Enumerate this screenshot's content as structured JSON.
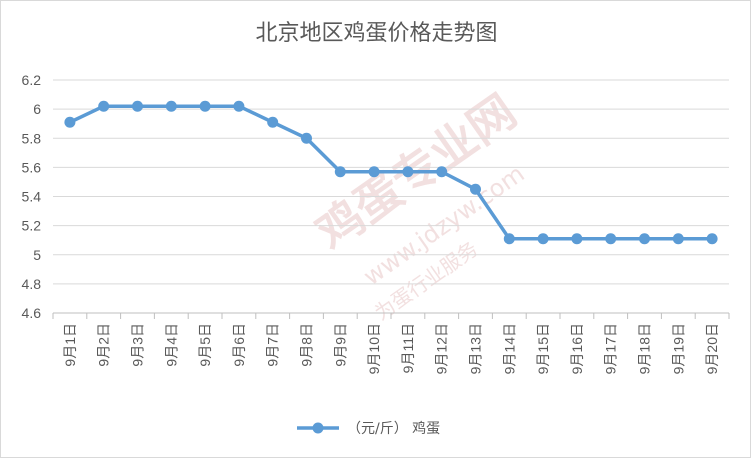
{
  "chart_data": {
    "type": "line",
    "title": "北京地区鸡蛋价格走势图",
    "categories": [
      "9月1日",
      "9月2日",
      "9月3日",
      "9月4日",
      "9月5日",
      "9月6日",
      "9月7日",
      "9月8日",
      "9月9日",
      "9月10日",
      "9月11日",
      "9月12日",
      "9月13日",
      "9月14日",
      "9月15日",
      "9月16日",
      "9月17日",
      "9月18日",
      "9月19日",
      "9月20日"
    ],
    "series": [
      {
        "name": "（元/斤） 鸡蛋",
        "values": [
          5.91,
          6.02,
          6.02,
          6.02,
          6.02,
          6.02,
          5.91,
          5.8,
          5.57,
          5.57,
          5.57,
          5.57,
          5.45,
          5.11,
          5.11,
          5.11,
          5.11,
          5.11,
          5.11,
          5.11
        ]
      }
    ],
    "ylim": [
      4.6,
      6.2
    ],
    "yticks": [
      4.6,
      4.8,
      5,
      5.2,
      5.4,
      5.6,
      5.8,
      6,
      6.2
    ],
    "xlabel": "",
    "ylabel": "",
    "grid": true,
    "legend_position": "bottom",
    "color": "#5b9bd5"
  },
  "watermark": {
    "main": "鸡蛋专业网",
    "url": "www.jdzyw.com",
    "slogan": "为蛋行业服务"
  }
}
